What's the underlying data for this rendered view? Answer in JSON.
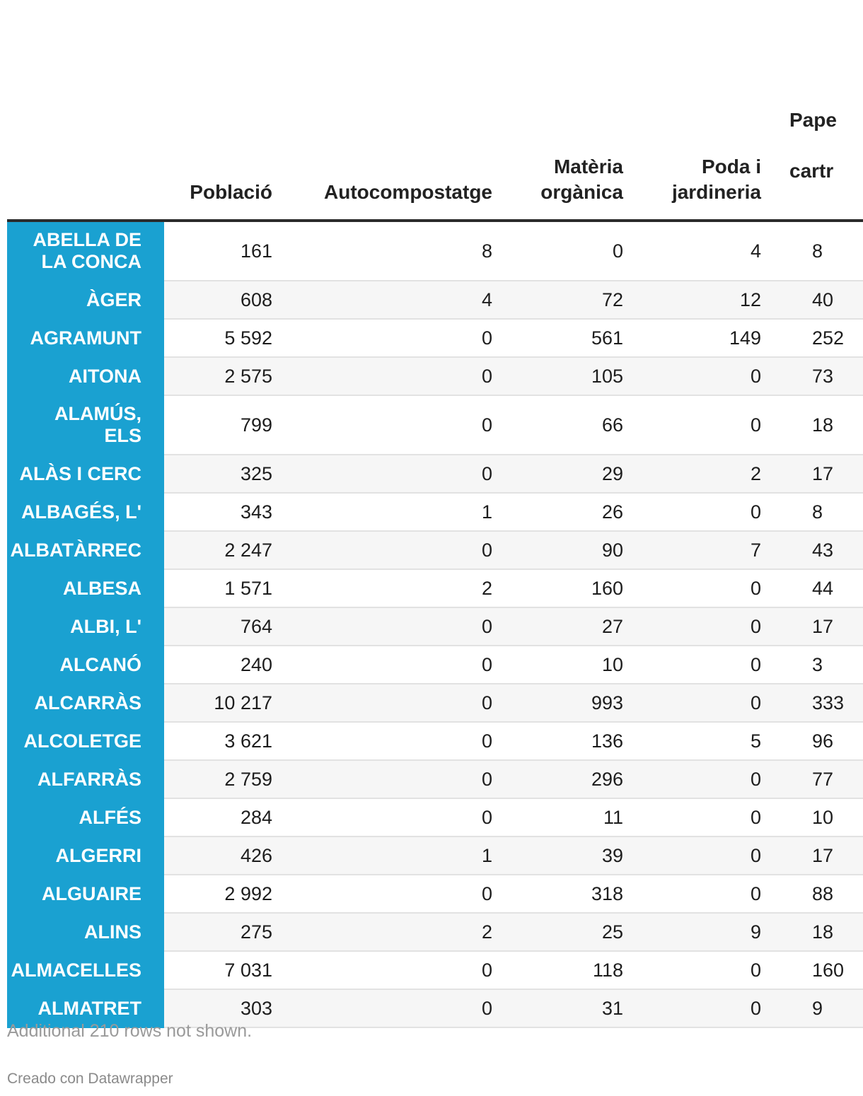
{
  "chart_data": {
    "type": "table",
    "columns": [
      "",
      "Població",
      "Autocompostatge",
      "Matèria orgànica",
      "Poda i jardineria",
      "Paper i cartró"
    ],
    "header_lines": [
      [
        ""
      ],
      [
        "Població"
      ],
      [
        "Autocompostatge"
      ],
      [
        "Matèria",
        "orgànica"
      ],
      [
        "Poda i",
        "jardineria"
      ],
      [
        "Pape",
        "cartr"
      ]
    ],
    "rows": [
      {
        "name": "ABELLA DE LA CONCA",
        "values": [
          "161",
          "8",
          "0",
          "4",
          "8"
        ]
      },
      {
        "name": "ÀGER",
        "values": [
          "608",
          "4",
          "72",
          "12",
          "40"
        ]
      },
      {
        "name": "AGRAMUNT",
        "values": [
          "5 592",
          "0",
          "561",
          "149",
          "252"
        ]
      },
      {
        "name": "AITONA",
        "values": [
          "2 575",
          "0",
          "105",
          "0",
          "73"
        ]
      },
      {
        "name": "ALAMÚS, ELS",
        "values": [
          "799",
          "0",
          "66",
          "0",
          "18"
        ]
      },
      {
        "name": "ALÀS I CERC",
        "values": [
          "325",
          "0",
          "29",
          "2",
          "17"
        ]
      },
      {
        "name": "ALBAGÉS, L'",
        "values": [
          "343",
          "1",
          "26",
          "0",
          "8"
        ]
      },
      {
        "name": "ALBATÀRREC",
        "values": [
          "2 247",
          "0",
          "90",
          "7",
          "43"
        ]
      },
      {
        "name": "ALBESA",
        "values": [
          "1 571",
          "2",
          "160",
          "0",
          "44"
        ]
      },
      {
        "name": "ALBI, L'",
        "values": [
          "764",
          "0",
          "27",
          "0",
          "17"
        ]
      },
      {
        "name": "ALCANÓ",
        "values": [
          "240",
          "0",
          "10",
          "0",
          "3"
        ]
      },
      {
        "name": "ALCARRÀS",
        "values": [
          "10 217",
          "0",
          "993",
          "0",
          "333"
        ]
      },
      {
        "name": "ALCOLETGE",
        "values": [
          "3 621",
          "0",
          "136",
          "5",
          "96"
        ]
      },
      {
        "name": "ALFARRÀS",
        "values": [
          "2 759",
          "0",
          "296",
          "0",
          "77"
        ]
      },
      {
        "name": "ALFÉS",
        "values": [
          "284",
          "0",
          "11",
          "0",
          "10"
        ]
      },
      {
        "name": "ALGERRI",
        "values": [
          "426",
          "1",
          "39",
          "0",
          "17"
        ]
      },
      {
        "name": "ALGUAIRE",
        "values": [
          "2 992",
          "0",
          "318",
          "0",
          "88"
        ]
      },
      {
        "name": "ALINS",
        "values": [
          "275",
          "2",
          "25",
          "9",
          "18"
        ]
      },
      {
        "name": "ALMACELLES",
        "values": [
          "7 031",
          "0",
          "118",
          "0",
          "160"
        ]
      },
      {
        "name": "ALMATRET",
        "values": [
          "303",
          "0",
          "31",
          "0",
          "9"
        ]
      }
    ],
    "accent_color": "#1aa1d1"
  },
  "footer": {
    "note": "Additional 210 rows not shown.",
    "credit": "Creado con Datawrapper"
  }
}
